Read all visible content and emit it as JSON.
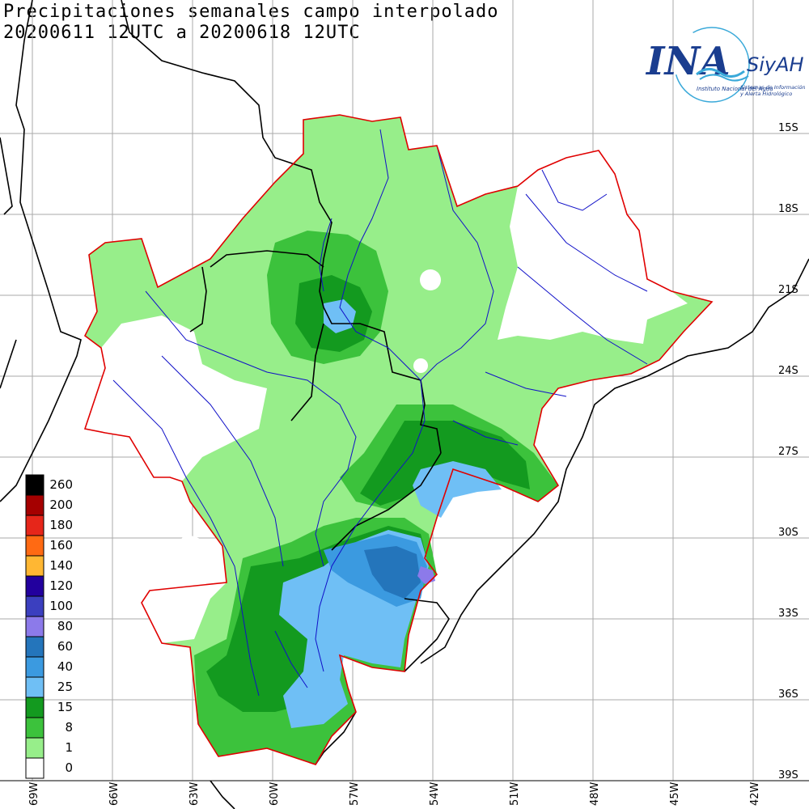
{
  "title": {
    "line1": "Precipitaciones semanales campo interpolado",
    "line2": "20200611 12UTC a 20200618 12UTC"
  },
  "logo": {
    "main_text": "INA",
    "brand_text": "SiyAH",
    "subtitle": "Instituto Nacional del Agua",
    "tagline1": "Sistemas de Información",
    "tagline2": "y Alerta Hidrológico",
    "color_main": "#1a3d8f",
    "color_accent": "#3aa9d9"
  },
  "lat_labels": [
    "15S",
    "18S",
    "21S",
    "24S",
    "27S",
    "30S",
    "33S",
    "36S",
    "39S"
  ],
  "lon_labels": [
    "69W",
    "66W",
    "63W",
    "60W",
    "57W",
    "54W",
    "51W",
    "48W",
    "45W",
    "42W"
  ],
  "legend": [
    {
      "value": "260",
      "color": "#000000"
    },
    {
      "value": "200",
      "color": "#a50000"
    },
    {
      "value": "180",
      "color": "#e6261a"
    },
    {
      "value": "160",
      "color": "#ff6a13"
    },
    {
      "value": "140",
      "color": "#ffb733"
    },
    {
      "value": "120",
      "color": "#22009e"
    },
    {
      "value": "100",
      "color": "#3b3fbf"
    },
    {
      "value": "80",
      "color": "#8c7aea"
    },
    {
      "value": "60",
      "color": "#2475bb"
    },
    {
      "value": "40",
      "color": "#3b9ae0"
    },
    {
      "value": "25",
      "color": "#6fbff5"
    },
    {
      "value": "15",
      "color": "#139a1f"
    },
    {
      "value": "8",
      "color": "#3cc23c"
    },
    {
      "value": "1",
      "color": "#97ee8a"
    },
    {
      "value": "0",
      "color": "#ffffff"
    }
  ],
  "colors": {
    "basin_border": "#e00000",
    "rivers": "#1010c8",
    "borders": "#000000",
    "grid": "#aaaaaa"
  }
}
